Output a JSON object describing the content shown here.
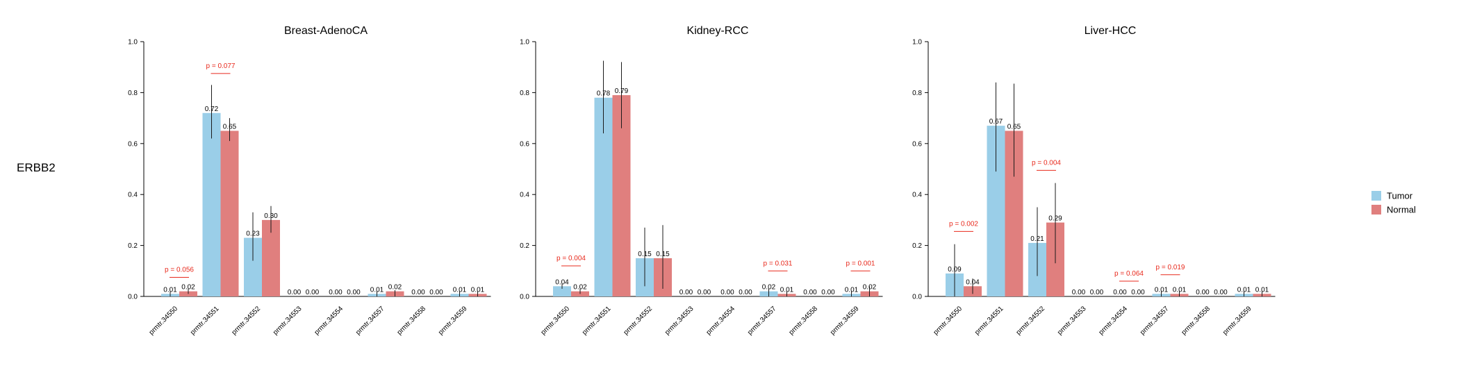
{
  "row_label": "ERBB2",
  "legend": [
    {
      "name": "Tumor",
      "color": "#9ACEE8"
    },
    {
      "name": "Normal",
      "color": "#E07F7E"
    }
  ],
  "colors": {
    "pvalue": "#E8291C",
    "axis": "#000000",
    "errorbar": "#1a1a1a"
  },
  "chart_data": [
    {
      "type": "bar",
      "title": "Breast-AdenoCA",
      "xlabel": "",
      "ylabel": "",
      "ylim": [
        0,
        1.0
      ],
      "yticks": [
        "0.0",
        "0.2",
        "0.4",
        "0.6",
        "0.8",
        "1.0"
      ],
      "categories": [
        "prmtr.34550",
        "prmtr.34551",
        "prmtr.34552",
        "prmtr.34553",
        "prmtr.34554",
        "prmtr.34557",
        "prmtr.34558",
        "prmtr.34559"
      ],
      "series": [
        {
          "name": "Tumor",
          "values": [
            0.01,
            0.72,
            0.23,
            0.0,
            0.0,
            0.01,
            0.0,
            0.01
          ],
          "labels": [
            "0.01",
            "0.72",
            "0.23",
            "0.00",
            "0.00",
            "0.01",
            "0.00",
            "0.01"
          ],
          "err_low": [
            0.0,
            0.62,
            0.14,
            null,
            null,
            0.0,
            null,
            0.0
          ],
          "err_high": [
            0.02,
            0.83,
            0.33,
            null,
            null,
            0.02,
            null,
            0.02
          ]
        },
        {
          "name": "Normal",
          "values": [
            0.02,
            0.65,
            0.3,
            0.0,
            0.0,
            0.02,
            0.0,
            0.01
          ],
          "labels": [
            "0.02",
            "0.65",
            "0.30",
            "0.00",
            "0.00",
            "0.02",
            "0.00",
            "0.01"
          ],
          "err_low": [
            0.01,
            0.61,
            0.25,
            null,
            null,
            0.0,
            null,
            0.0
          ],
          "err_high": [
            0.03,
            0.7,
            0.355,
            null,
            null,
            0.025,
            null,
            0.02
          ]
        }
      ],
      "pvalues": [
        {
          "index": 0,
          "label": "p = 0.056",
          "y": 0.075
        },
        {
          "index": 1,
          "label": "p = 0.077",
          "y": 0.875
        }
      ]
    },
    {
      "type": "bar",
      "title": "Kidney-RCC",
      "xlabel": "",
      "ylabel": "",
      "ylim": [
        0,
        1.0
      ],
      "yticks": [
        "0.0",
        "0.2",
        "0.4",
        "0.6",
        "0.8",
        "1.0"
      ],
      "categories": [
        "prmtr.34550",
        "prmtr.34551",
        "prmtr.34552",
        "prmtr.34553",
        "prmtr.34554",
        "prmtr.34557",
        "prmtr.34558",
        "prmtr.34559"
      ],
      "series": [
        {
          "name": "Tumor",
          "values": [
            0.04,
            0.78,
            0.15,
            0.0,
            0.0,
            0.02,
            0.0,
            0.01
          ],
          "labels": [
            "0.04",
            "0.78",
            "0.15",
            "0.00",
            "0.00",
            "0.02",
            "0.00",
            "0.01"
          ],
          "err_low": [
            0.03,
            0.64,
            0.04,
            null,
            null,
            0.0,
            null,
            0.0
          ],
          "err_high": [
            0.05,
            0.925,
            0.27,
            null,
            null,
            0.03,
            null,
            0.02
          ]
        },
        {
          "name": "Normal",
          "values": [
            0.02,
            0.79,
            0.15,
            0.0,
            0.0,
            0.01,
            0.0,
            0.02
          ],
          "labels": [
            "0.02",
            "0.79",
            "0.15",
            "0.00",
            "0.00",
            "0.01",
            "0.00",
            "0.02"
          ],
          "err_low": [
            0.01,
            0.66,
            0.03,
            null,
            null,
            0.0,
            null,
            0.0
          ],
          "err_high": [
            0.03,
            0.92,
            0.28,
            null,
            null,
            0.02,
            null,
            0.04
          ]
        }
      ],
      "pvalues": [
        {
          "index": 0,
          "label": "p = 0.004",
          "y": 0.12
        },
        {
          "index": 5,
          "label": "p = 0.031",
          "y": 0.1
        },
        {
          "index": 7,
          "label": "p = 0.001",
          "y": 0.1
        }
      ]
    },
    {
      "type": "bar",
      "title": "Liver-HCC",
      "xlabel": "",
      "ylabel": "",
      "ylim": [
        0,
        1.0
      ],
      "yticks": [
        "0.0",
        "0.2",
        "0.4",
        "0.6",
        "0.8",
        "1.0"
      ],
      "categories": [
        "prmtr.34550",
        "prmtr.34551",
        "prmtr.34552",
        "prmtr.34553",
        "prmtr.34554",
        "prmtr.34557",
        "prmtr.34558",
        "prmtr.34559"
      ],
      "series": [
        {
          "name": "Tumor",
          "values": [
            0.09,
            0.67,
            0.21,
            0.0,
            0.0,
            0.01,
            0.0,
            0.01
          ],
          "labels": [
            "0.09",
            "0.67",
            "0.21",
            "0.00",
            "0.00",
            "0.01",
            "0.00",
            "0.01"
          ],
          "err_low": [
            0.0,
            0.49,
            0.08,
            null,
            null,
            0.0,
            null,
            0.0
          ],
          "err_high": [
            0.205,
            0.84,
            0.35,
            null,
            null,
            0.02,
            null,
            0.02
          ]
        },
        {
          "name": "Normal",
          "values": [
            0.04,
            0.65,
            0.29,
            0.0,
            0.0,
            0.01,
            0.0,
            0.01
          ],
          "labels": [
            "0.04",
            "0.65",
            "0.29",
            "0.00",
            "0.00",
            "0.01",
            "0.00",
            "0.01"
          ],
          "err_low": [
            0.01,
            0.47,
            0.13,
            null,
            null,
            0.0,
            null,
            0.0
          ],
          "err_high": [
            0.07,
            0.835,
            0.445,
            null,
            null,
            0.02,
            null,
            0.02
          ]
        }
      ],
      "pvalues": [
        {
          "index": 0,
          "label": "p = 0.002",
          "y": 0.255
        },
        {
          "index": 2,
          "label": "p = 0.004",
          "y": 0.495
        },
        {
          "index": 4,
          "label": "p = 0.064",
          "y": 0.06
        },
        {
          "index": 5,
          "label": "p = 0.019",
          "y": 0.085
        }
      ]
    }
  ]
}
